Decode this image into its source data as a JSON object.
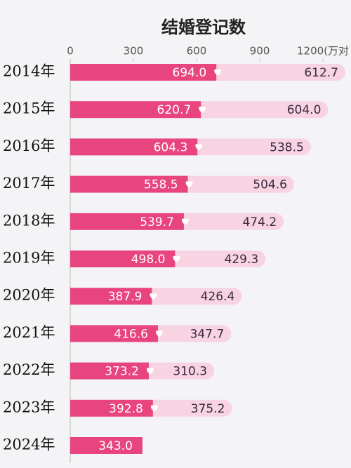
{
  "chart_data": {
    "type": "stacked-barh",
    "title": "结婚登记数",
    "categories": [
      "2014年",
      "2015年",
      "2016年",
      "2017年",
      "2018年",
      "2019年",
      "2020年",
      "2021年",
      "2022年",
      "2023年",
      "2024年"
    ],
    "series": [
      {
        "color": "#e8457f",
        "values": [
          694.0,
          620.7,
          604.3,
          558.5,
          539.7,
          498.0,
          387.9,
          416.6,
          373.2,
          392.8,
          343.0
        ],
        "value_labels": [
          "694.0",
          "620.7",
          "604.3",
          "558.5",
          "539.7",
          "498.0",
          "387.9",
          "416.6",
          "373.2",
          "392.8",
          "343.0"
        ]
      },
      {
        "color": "#f8d3e2",
        "values": [
          612.7,
          604.0,
          538.5,
          504.6,
          474.2,
          429.3,
          426.4,
          347.7,
          310.3,
          375.2,
          null
        ],
        "value_labels": [
          "612.7",
          "604.0",
          "538.5",
          "504.6",
          "474.2",
          "429.3",
          "426.4",
          "347.7",
          "310.3",
          "375.2",
          null
        ]
      }
    ],
    "xlim": [
      0,
      1330
    ],
    "xticks": [
      0,
      300,
      600,
      900,
      {
        "value": 1200,
        "label": "1200(万对"
      }
    ]
  }
}
